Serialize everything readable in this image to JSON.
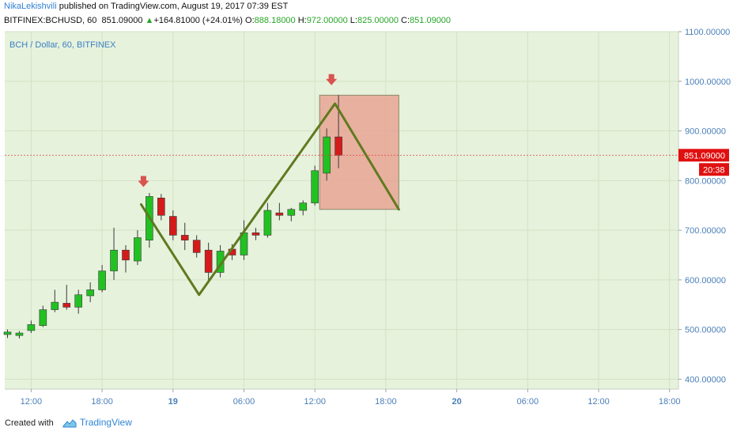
{
  "header": {
    "author": "NikaLekishvili",
    "published_text": "published on TradingView.com, August 19, 2017 07:39 EST",
    "symbol": "BITFINEX:BCHUSD, 60",
    "last": "851.09000",
    "change": "+164.81000 (+24.01%)",
    "o_label": "O:",
    "o_value": "888.18000",
    "h_label": "H:",
    "h_value": "972.00000",
    "l_label": "L:",
    "l_value": "825.00000",
    "c_label": "C:",
    "c_value": "851.09000"
  },
  "chart_label": "BCH / Dollar, 60, BITFINEX",
  "price_label": "851.09000",
  "countdown": "20:38",
  "footer": {
    "created_with": "Created with",
    "brand": "TradingView"
  },
  "colors": {
    "background": "#e6f2dc",
    "up_candle": "#22c122",
    "down_candle": "#d41b1b",
    "pattern_line": "#5f7a1f",
    "target_box": "#e8a594",
    "arrow": "#d9534f",
    "price_line": "#e04040"
  },
  "chart_data": {
    "type": "candlestick",
    "title": "BCH / Dollar, 60, BITFINEX",
    "ylim": [
      380,
      1100
    ],
    "y_ticks": [
      "400.00000",
      "500.00000",
      "600.00000",
      "700.00000",
      "800.00000",
      "900.00000",
      "1000.00000",
      "1100.00000"
    ],
    "x_ticks": [
      "12:00",
      "18:00",
      "19",
      "06:00",
      "12:00",
      "18:00",
      "20",
      "06:00",
      "12:00",
      "18:00"
    ],
    "x_tick_bars": [
      2,
      8,
      14,
      20,
      26,
      32,
      38,
      44,
      50,
      56
    ],
    "current_price": 851.09,
    "candles": [
      {
        "o": 490,
        "h": 500,
        "l": 483,
        "c": 495
      },
      {
        "o": 488,
        "h": 497,
        "l": 482,
        "c": 493
      },
      {
        "o": 498,
        "h": 518,
        "l": 493,
        "c": 510
      },
      {
        "o": 508,
        "h": 548,
        "l": 505,
        "c": 540
      },
      {
        "o": 540,
        "h": 580,
        "l": 535,
        "c": 555
      },
      {
        "o": 553,
        "h": 590,
        "l": 540,
        "c": 545
      },
      {
        "o": 545,
        "h": 580,
        "l": 532,
        "c": 570
      },
      {
        "o": 568,
        "h": 595,
        "l": 555,
        "c": 580
      },
      {
        "o": 580,
        "h": 630,
        "l": 575,
        "c": 618
      },
      {
        "o": 618,
        "h": 705,
        "l": 600,
        "c": 660
      },
      {
        "o": 660,
        "h": 670,
        "l": 615,
        "c": 640
      },
      {
        "o": 638,
        "h": 700,
        "l": 630,
        "c": 685
      },
      {
        "o": 680,
        "h": 775,
        "l": 665,
        "c": 768
      },
      {
        "o": 765,
        "h": 773,
        "l": 720,
        "c": 730
      },
      {
        "o": 728,
        "h": 740,
        "l": 680,
        "c": 690
      },
      {
        "o": 690,
        "h": 715,
        "l": 660,
        "c": 680
      },
      {
        "o": 680,
        "h": 690,
        "l": 645,
        "c": 655
      },
      {
        "o": 660,
        "h": 675,
        "l": 600,
        "c": 615
      },
      {
        "o": 615,
        "h": 670,
        "l": 605,
        "c": 658
      },
      {
        "o": 662,
        "h": 672,
        "l": 640,
        "c": 650
      },
      {
        "o": 650,
        "h": 720,
        "l": 640,
        "c": 695
      },
      {
        "o": 695,
        "h": 705,
        "l": 680,
        "c": 690
      },
      {
        "o": 690,
        "h": 755,
        "l": 685,
        "c": 740
      },
      {
        "o": 735,
        "h": 755,
        "l": 720,
        "c": 730
      },
      {
        "o": 730,
        "h": 745,
        "l": 718,
        "c": 742
      },
      {
        "o": 740,
        "h": 760,
        "l": 730,
        "c": 755
      },
      {
        "o": 755,
        "h": 830,
        "l": 750,
        "c": 820
      },
      {
        "o": 815,
        "h": 905,
        "l": 800,
        "c": 888
      },
      {
        "o": 888,
        "h": 972,
        "l": 825,
        "c": 851
      }
    ],
    "signal_arrows": [
      {
        "bar": 11.5,
        "price": 795
      },
      {
        "bar": 27.4,
        "price": 1000
      }
    ],
    "pattern_line": [
      {
        "bar": 11.3,
        "price": 752
      },
      {
        "bar": 16.2,
        "price": 570
      },
      {
        "bar": 27.7,
        "price": 955
      },
      {
        "bar": 33.1,
        "price": 742
      }
    ],
    "target_box": {
      "bar_start": 26.4,
      "bar_end": 33.1,
      "price_top": 972,
      "price_bottom": 742
    }
  }
}
